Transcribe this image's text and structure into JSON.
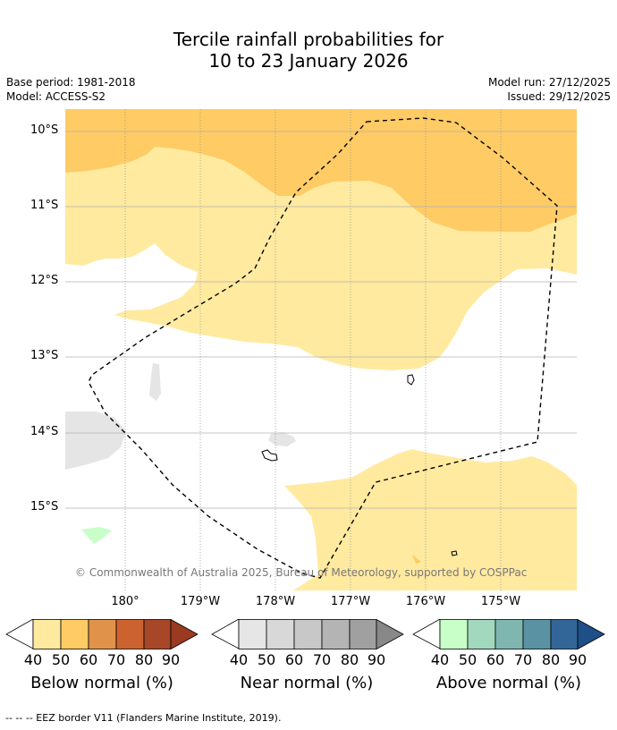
{
  "title": {
    "line1": "Tercile rainfall probabilities for",
    "line2": "10 to 23 January 2026"
  },
  "meta": {
    "base_period": "Base period: 1981-2018",
    "model": "Model: ACCESS-S2",
    "model_run": "Model run: 27/12/2025",
    "issued": "Issued: 29/12/2025"
  },
  "map": {
    "lat_labels": [
      "10°S",
      "11°S",
      "12°S",
      "13°S",
      "14°S",
      "15°S"
    ],
    "lon_labels": [
      "180°",
      "179°W",
      "178°W",
      "177°W",
      "176°W",
      "175°W"
    ],
    "credit": "© Commonwealth of Australia 2025, Bureau of Meteorology, supported by COSPPac",
    "colors": {
      "below_40": "#ffeaa0",
      "below_50": "#fecb65",
      "near_40": "#e5e5e5",
      "above_40": "#c8ffc8",
      "grid": "#b0b0b0"
    }
  },
  "colorbars": [
    {
      "title": "Below normal (%)",
      "ticks": [
        "40",
        "50",
        "60",
        "70",
        "80",
        "90"
      ],
      "colors": [
        "#ffeaa0",
        "#fecb65",
        "#e0924a",
        "#cb6230",
        "#a84628",
        "#9a3a20"
      ]
    },
    {
      "title": "Near normal (%)",
      "ticks": [
        "40",
        "50",
        "60",
        "70",
        "80",
        "90"
      ],
      "colors": [
        "#e6e6e6",
        "#d8d8d8",
        "#c8c8c8",
        "#b4b4b4",
        "#a0a0a0",
        "#888888"
      ]
    },
    {
      "title": "Above normal (%)",
      "ticks": [
        "40",
        "50",
        "60",
        "70",
        "80",
        "90"
      ],
      "colors": [
        "#c8ffc8",
        "#a2d8be",
        "#7fb6b0",
        "#5a92a4",
        "#326698",
        "#1e4f86"
      ]
    }
  ],
  "footer": "--  --  -- EEZ border V11 (Flanders Marine Institute, 2019)."
}
